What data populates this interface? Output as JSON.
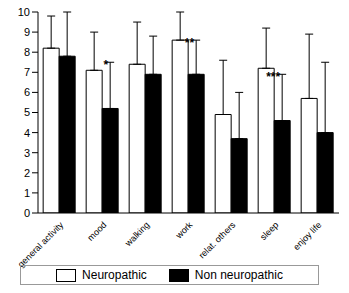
{
  "chart_data": {
    "type": "bar",
    "categories": [
      "general activity",
      "mood",
      "walking",
      "work",
      "relat. others",
      "sleep",
      "enjoy life"
    ],
    "series": [
      {
        "name": "Neuropathic",
        "color": "#ffffff",
        "values": [
          8.2,
          7.1,
          7.4,
          8.6,
          4.9,
          7.2,
          5.7
        ],
        "error": [
          1.6,
          1.9,
          2.1,
          1.4,
          2.7,
          2.0,
          3.2
        ]
      },
      {
        "name": "Non neuropathic",
        "color": "#000000",
        "values": [
          7.8,
          5.2,
          6.9,
          6.9,
          3.7,
          4.6,
          4.0
        ],
        "error": [
          2.2,
          2.3,
          1.9,
          1.7,
          2.3,
          2.3,
          3.5
        ]
      }
    ],
    "annotations": [
      {
        "text": "*",
        "category": "mood",
        "series": "Non neuropathic"
      },
      {
        "text": "**",
        "category": "work",
        "series": "Non neuropathic"
      },
      {
        "text": "***",
        "category": "sleep",
        "series": "Non neuropathic"
      }
    ],
    "ylim": [
      0,
      10
    ],
    "yticks": [
      0,
      1,
      2,
      3,
      4,
      5,
      6,
      7,
      8,
      9,
      10
    ],
    "grid": false,
    "legend": "bottom"
  }
}
